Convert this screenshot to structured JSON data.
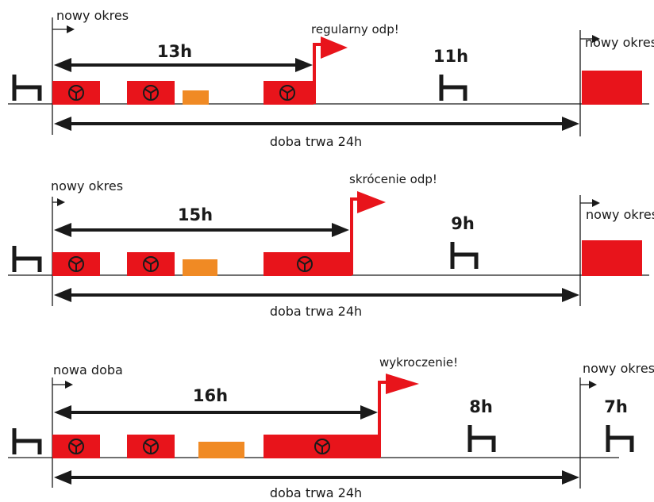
{
  "colors": {
    "driving": "#e8141b",
    "other_work": "#f08a24",
    "line": "#1a1a1a",
    "flag": "#e8141b"
  },
  "icons": [
    "steering-wheel-icon",
    "bed-rest-icon",
    "start-arrow-icon",
    "flag-icon"
  ],
  "scenarios": [
    {
      "start_label": "nowy okres",
      "work_duration": "13h",
      "flag_label": "regularny odp!",
      "rest_duration": "11h",
      "end_label": "nowy okres",
      "day_label": "doba trwa 24h"
    },
    {
      "start_label": "nowy okres",
      "work_duration": "15h",
      "flag_label": "skrócenie odp!",
      "rest_duration": "9h",
      "end_label": "nowy okres",
      "day_label": "doba trwa 24h"
    },
    {
      "start_label": "nowa doba",
      "work_duration": "16h",
      "flag_label": "wykroczenie!",
      "rest_duration": "8h",
      "end_label": "nowy okres",
      "end_rest_duration": "7h",
      "day_label": "doba trwa 24h"
    }
  ]
}
